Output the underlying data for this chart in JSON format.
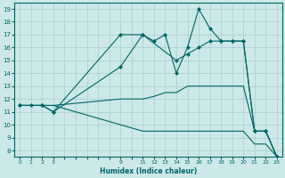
{
  "xlabel": "Humidex (Indice chaleur)",
  "bg_color": "#cce8e8",
  "line_color": "#006666",
  "grid_color": "#aacccc",
  "yticks": [
    8,
    9,
    10,
    11,
    12,
    13,
    14,
    15,
    16,
    17,
    18,
    19
  ],
  "ylim": [
    7.5,
    19.5
  ],
  "xtick_labels": [
    "0",
    "1",
    "2",
    "3",
    "",
    "",
    "",
    "",
    "",
    "9",
    "",
    "11",
    "12",
    "13",
    "14",
    "15",
    "16",
    "17",
    "18",
    "19",
    "20",
    "21",
    "22",
    "23"
  ],
  "lines": [
    {
      "xi": [
        0,
        1,
        2,
        3,
        9,
        11,
        12,
        13,
        14,
        15,
        16,
        17,
        18,
        19,
        20,
        21,
        22,
        23
      ],
      "y": [
        11.5,
        11.5,
        11.5,
        11.0,
        14.5,
        17.0,
        16.5,
        17.0,
        14.0,
        16.0,
        19.0,
        17.5,
        16.5,
        16.5,
        16.5,
        9.5,
        9.5,
        7.5
      ],
      "marker": "D",
      "markersize": 2.0
    },
    {
      "xi": [
        0,
        2,
        3,
        9,
        11,
        14,
        15,
        16,
        17,
        18,
        19,
        20,
        21,
        22,
        23
      ],
      "y": [
        11.5,
        11.5,
        11.0,
        17.0,
        17.0,
        15.0,
        15.5,
        16.0,
        16.5,
        16.5,
        16.5,
        16.5,
        9.5,
        9.5,
        7.5
      ],
      "marker": "D",
      "markersize": 2.0
    },
    {
      "xi": [
        0,
        1,
        2,
        3,
        9,
        11,
        12,
        13,
        14,
        15,
        16,
        17,
        18,
        19,
        20,
        21,
        22,
        23
      ],
      "y": [
        11.5,
        11.5,
        11.5,
        11.5,
        12.0,
        12.0,
        12.2,
        12.5,
        12.5,
        13.0,
        13.0,
        13.0,
        13.0,
        13.0,
        13.0,
        9.5,
        9.5,
        7.5
      ],
      "marker": null,
      "markersize": 0
    },
    {
      "xi": [
        0,
        1,
        2,
        3,
        9,
        11,
        12,
        13,
        14,
        15,
        16,
        17,
        18,
        19,
        20,
        21,
        22,
        23
      ],
      "y": [
        11.5,
        11.5,
        11.5,
        11.5,
        10.0,
        9.5,
        9.5,
        9.5,
        9.5,
        9.5,
        9.5,
        9.5,
        9.5,
        9.5,
        9.5,
        8.5,
        8.5,
        7.5
      ],
      "marker": null,
      "markersize": 0
    }
  ]
}
